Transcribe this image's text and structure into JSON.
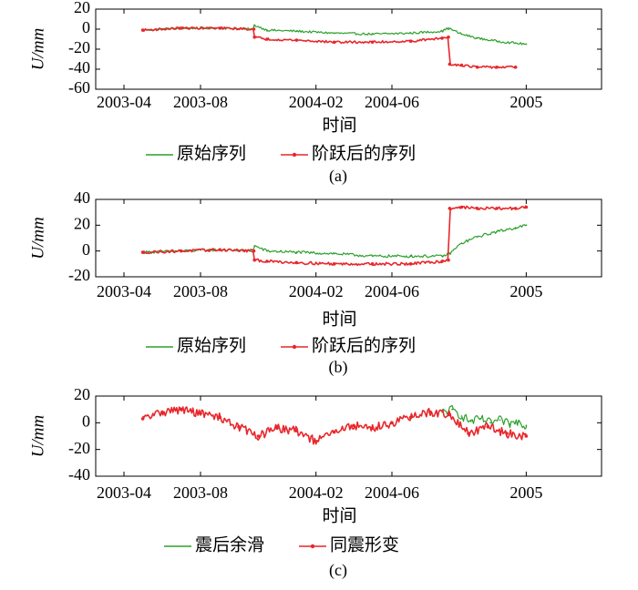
{
  "chart_data": [
    {
      "type": "line",
      "panel_label": "(a)",
      "xlabel": "时间",
      "ylabel": "U/mm",
      "xlim": [
        "2003-02-15",
        "2005-05-01"
      ],
      "ylim": [
        -60,
        20
      ],
      "xticks": [
        {
          "date": "2003-04-01",
          "label": "2003-04"
        },
        {
          "date": "2003-08-01",
          "label": "2003-08"
        },
        {
          "date": "2004-02-01",
          "label": "2004-02"
        },
        {
          "date": "2004-06-01",
          "label": "2004-06"
        },
        {
          "date": "2005-01-01",
          "label": "2005"
        }
      ],
      "yticks": [
        20,
        0,
        -20,
        -40,
        -60
      ],
      "series": [
        {
          "name": "原始序列",
          "color": "#2ca02c",
          "marker": "none",
          "x": [
            "2003-05-01",
            "2003-07-01",
            "2003-09-01",
            "2003-10-25",
            "2003-10-26",
            "2003-11-15",
            "2004-01-01",
            "2004-03-01",
            "2004-05-01",
            "2004-07-01",
            "2004-08-20",
            "2004-08-30",
            "2004-09-20",
            "2004-10-15",
            "2004-11-15",
            "2004-12-15",
            "2005-01-01"
          ],
          "y": [
            -1,
            1,
            1,
            0,
            4,
            -1,
            -2,
            -4,
            -5,
            -4,
            -2,
            1,
            -5,
            -9,
            -12,
            -14,
            -15
          ]
        },
        {
          "name": "阶跃后的序列",
          "color": "#e8272b",
          "marker": "dot",
          "x": [
            "2003-05-01",
            "2003-07-01",
            "2003-09-01",
            "2003-10-25",
            "2003-10-26",
            "2003-11-15",
            "2004-01-01",
            "2004-03-01",
            "2004-05-01",
            "2004-07-01",
            "2004-08-20",
            "2004-08-30",
            "2004-09-01",
            "2004-09-20",
            "2004-10-15",
            "2004-11-15",
            "2004-12-15"
          ],
          "y": [
            -1,
            1,
            1,
            0,
            -8,
            -10,
            -11,
            -13,
            -13,
            -12,
            -9,
            -8,
            -35,
            -36,
            -38,
            -38,
            -38
          ]
        }
      ]
    },
    {
      "type": "line",
      "panel_label": "(b)",
      "xlabel": "时间",
      "ylabel": "U/mm",
      "xlim": [
        "2003-02-15",
        "2005-05-01"
      ],
      "ylim": [
        -20,
        40
      ],
      "xticks": [
        {
          "date": "2003-04-01",
          "label": "2003-04"
        },
        {
          "date": "2003-08-01",
          "label": "2003-08"
        },
        {
          "date": "2004-02-01",
          "label": "2004-02"
        },
        {
          "date": "2004-06-01",
          "label": "2004-06"
        },
        {
          "date": "2005-01-01",
          "label": "2005"
        }
      ],
      "yticks": [
        40,
        20,
        0,
        -20
      ],
      "series": [
        {
          "name": "原始序列",
          "color": "#2ca02c",
          "marker": "none",
          "x": [
            "2003-05-01",
            "2003-07-01",
            "2003-09-01",
            "2003-10-25",
            "2003-10-26",
            "2003-11-15",
            "2004-01-01",
            "2004-03-01",
            "2004-05-01",
            "2004-07-01",
            "2004-08-20",
            "2004-09-01",
            "2004-09-20",
            "2004-10-15",
            "2004-11-15",
            "2004-12-15",
            "2005-01-01"
          ],
          "y": [
            -1,
            0,
            1,
            0,
            4,
            0,
            -1,
            -2,
            -4,
            -4,
            -4,
            -2,
            6,
            11,
            15,
            18,
            20
          ]
        },
        {
          "name": "阶跃后的序列",
          "color": "#e8272b",
          "marker": "dot",
          "x": [
            "2003-05-01",
            "2003-07-01",
            "2003-09-01",
            "2003-10-25",
            "2003-10-26",
            "2003-11-15",
            "2004-01-01",
            "2004-03-01",
            "2004-05-01",
            "2004-07-01",
            "2004-08-20",
            "2004-08-30",
            "2004-09-01",
            "2004-09-20",
            "2004-10-15",
            "2004-11-15",
            "2004-12-15",
            "2005-01-01"
          ],
          "y": [
            -1,
            0,
            1,
            0,
            -7,
            -8,
            -9,
            -10,
            -10,
            -10,
            -8,
            -7,
            33,
            34,
            33,
            33,
            33,
            34
          ]
        }
      ]
    },
    {
      "type": "line",
      "panel_label": "(c)",
      "xlabel": "时间",
      "ylabel": "U/mm",
      "xlim": [
        "2003-02-15",
        "2005-05-01"
      ],
      "ylim": [
        -40,
        20
      ],
      "xticks": [
        {
          "date": "2003-04-01",
          "label": "2003-04"
        },
        {
          "date": "2003-08-01",
          "label": "2003-08"
        },
        {
          "date": "2004-02-01",
          "label": "2004-02"
        },
        {
          "date": "2004-06-01",
          "label": "2004-06"
        },
        {
          "date": "2005-01-01",
          "label": "2005"
        }
      ],
      "yticks": [
        20,
        0,
        -20,
        -40
      ],
      "series": [
        {
          "name": "震后余滑",
          "color": "#2ca02c",
          "marker": "none",
          "x": [
            "2004-08-20",
            "2004-09-05",
            "2004-09-20",
            "2004-10-05",
            "2004-10-20",
            "2004-11-05",
            "2004-11-20",
            "2004-12-05",
            "2004-12-20",
            "2005-01-01"
          ],
          "y": [
            8,
            10,
            5,
            1,
            3,
            0,
            2,
            -1,
            1,
            -2
          ]
        },
        {
          "name": "同震形变",
          "color": "#e8272b",
          "marker": "dot",
          "x": [
            "2003-05-01",
            "2003-06-01",
            "2003-07-01",
            "2003-08-01",
            "2003-09-01",
            "2003-10-01",
            "2003-11-01",
            "2003-12-01",
            "2004-01-01",
            "2004-02-01",
            "2004-03-01",
            "2004-04-01",
            "2004-05-01",
            "2004-06-01",
            "2004-07-01",
            "2004-08-01",
            "2004-09-01",
            "2004-10-01",
            "2004-11-01",
            "2004-12-01",
            "2005-01-01"
          ],
          "y": [
            3,
            8,
            10,
            7,
            4,
            -3,
            -10,
            -4,
            -6,
            -14,
            -7,
            -2,
            -4,
            0,
            4,
            8,
            6,
            -8,
            -3,
            -8,
            -10
          ]
        }
      ]
    }
  ]
}
